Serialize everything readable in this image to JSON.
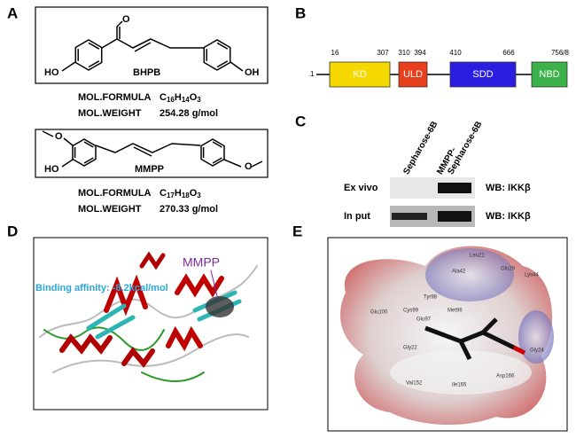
{
  "panel_a": {
    "label": "A",
    "compounds": [
      {
        "name": "BHPB",
        "atoms": [
          "O",
          "HO",
          "OH"
        ],
        "formula_label": "MOL.FORMULA",
        "formula": [
          "C",
          "16",
          "H",
          "14",
          "O",
          "3"
        ],
        "weight_label": "MOL.WEIGHT",
        "weight": "254.28 g/mol"
      },
      {
        "name": "MMPP",
        "atoms": [
          "O",
          "HO",
          "O"
        ],
        "formula_label": "MOL.FORMULA",
        "formula": [
          "C",
          "17",
          "H",
          "18",
          "O",
          "3"
        ],
        "weight_label": "MOL.WEIGHT",
        "weight": "270.33 g/mol"
      }
    ]
  },
  "panel_b": {
    "label": "B",
    "start": "1",
    "domains": [
      {
        "name": "KD",
        "start": "16",
        "end": "307",
        "color": "#f5d800"
      },
      {
        "name": "ULD",
        "start": "310",
        "end": "394",
        "color": "#e8401c"
      },
      {
        "name": "SDD",
        "start": "410",
        "end": "666",
        "color": "#2b1ee0"
      },
      {
        "name": "NBD",
        "end": "756/8",
        "color": "#3cb24a"
      }
    ]
  },
  "panel_c": {
    "label": "C",
    "lanes": [
      [
        "Sepharose-6B"
      ],
      [
        "MMPP-",
        "Sepharose-6B"
      ]
    ],
    "rows": [
      {
        "label": "Ex vivo",
        "probe": "WB: IKKβ"
      },
      {
        "label": "In put",
        "probe": "WB: IKKβ"
      }
    ]
  },
  "panel_d": {
    "label": "D",
    "ligand": "MMPP",
    "affinity": "Binding affinity: -8.2kcal/mol"
  },
  "panel_e": {
    "label": "E",
    "residues": [
      "Leu21",
      "Ala42",
      "Glu29",
      "Lys44",
      "Tyr98",
      "Cys99",
      "Glu97",
      "Met96",
      "Glu100",
      "Gly22",
      "Gly24",
      "Val152",
      "Ile165",
      "Asp166"
    ]
  }
}
